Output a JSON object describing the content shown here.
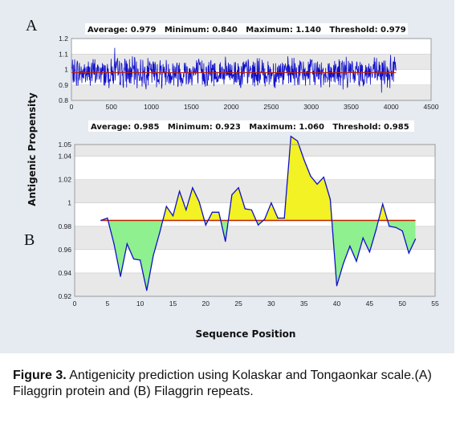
{
  "panel_labels": {
    "a": "A",
    "b": "B"
  },
  "y_axis_title": "Antigenic Propensity",
  "x_axis_title": "Sequence Position",
  "caption": {
    "figure_label": "Figure 3.",
    "text": "Antigenicity prediction using Kolaskar and Tongaonkar scale.(A) Filaggrin protein and (B) Filaggrin repeats."
  },
  "colors": {
    "panel_background": "#e6ebf2",
    "plot_band": "#e8e8e8",
    "trace_blue": "#1010c8",
    "threshold_line": "#c02000",
    "above_fill": "#f2f224",
    "below_fill": "#8ef08e"
  },
  "chart_data": [
    {
      "type": "line",
      "panel": "A",
      "stats_text": "Average: 0.979   Minimum: 0.840   Maximum: 1.140   Threshold: 0.979",
      "stats": {
        "average": 0.979,
        "minimum": 0.84,
        "maximum": 1.14,
        "threshold": 0.979
      },
      "xlim": [
        0,
        4500
      ],
      "ylim": [
        0.8,
        1.2
      ],
      "x_ticks": [
        "0",
        "500",
        "1000",
        "1500",
        "2000",
        "2500",
        "3000",
        "3500",
        "4000",
        "4500"
      ],
      "y_ticks": [
        "0.8",
        "0.9",
        "1",
        "1.1",
        "1.2"
      ],
      "series_x_range": [
        0,
        4061
      ],
      "grid": "horizontal bands"
    },
    {
      "type": "area",
      "panel": "B",
      "stats_text": "Average: 0.985   Minimum: 0.923   Maximum: 1.060   Threshold: 0.985",
      "stats": {
        "average": 0.985,
        "minimum": 0.923,
        "maximum": 1.06,
        "threshold": 0.985
      },
      "xlim": [
        0,
        55
      ],
      "ylim": [
        0.92,
        1.05
      ],
      "x_ticks": [
        "0",
        "5",
        "10",
        "15",
        "20",
        "25",
        "30",
        "35",
        "40",
        "45",
        "50",
        "55"
      ],
      "y_ticks": [
        "0.92",
        "0.94",
        "0.96",
        "0.98",
        "1",
        "1.02",
        "1.04",
        "1.05"
      ],
      "threshold": 0.985,
      "threshold_x_range": [
        4,
        52
      ],
      "x": [
        4,
        5,
        6,
        7,
        8,
        9,
        10,
        11,
        12,
        13,
        14,
        15,
        16,
        17,
        18,
        19,
        20,
        21,
        22,
        23,
        24,
        25,
        26,
        27,
        28,
        29,
        30,
        31,
        32,
        33,
        34,
        35,
        36,
        37,
        38,
        39,
        40,
        41,
        42,
        43,
        44,
        45,
        46,
        47,
        48,
        49,
        50,
        51,
        52
      ],
      "values": [
        0.985,
        0.987,
        0.965,
        0.937,
        0.965,
        0.952,
        0.951,
        0.925,
        0.955,
        0.975,
        0.997,
        0.989,
        1.01,
        0.994,
        1.013,
        1.001,
        0.981,
        0.992,
        0.992,
        0.967,
        1.007,
        1.013,
        0.995,
        0.994,
        0.981,
        0.986,
        1.0,
        0.987,
        0.987,
        1.057,
        1.053,
        1.037,
        1.023,
        1.016,
        1.022,
        1.003,
        0.929,
        0.948,
        0.963,
        0.95,
        0.97,
        0.958,
        0.977,
        0.999,
        0.98,
        0.979,
        0.976,
        0.957,
        0.969
      ]
    }
  ]
}
